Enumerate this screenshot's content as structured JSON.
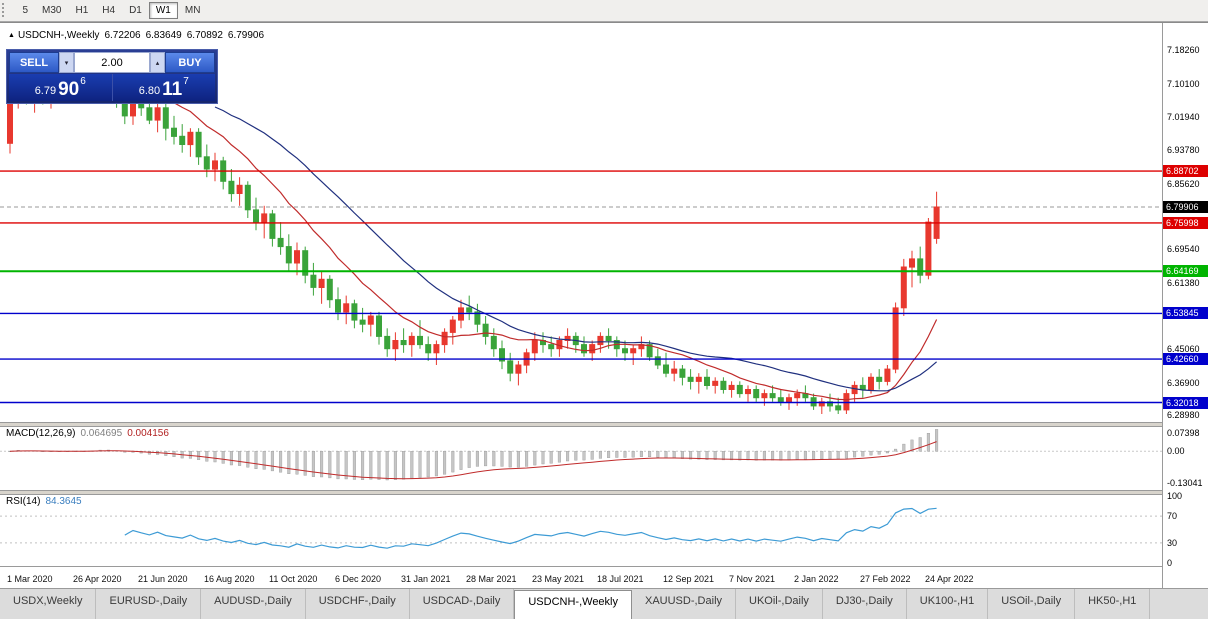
{
  "toolbar": {
    "timeframes": [
      "5",
      "M30",
      "H1",
      "H4",
      "D1",
      "W1",
      "MN"
    ],
    "active": "W1"
  },
  "header": {
    "arrow": "▲",
    "symbol": "USDCNH-,Weekly",
    "open": "6.72206",
    "high": "6.83649",
    "low": "6.70892",
    "close": "6.79906"
  },
  "trade_panel": {
    "sell_label": "SELL",
    "buy_label": "BUY",
    "volume": "2.00",
    "volume_down_icon": "▾",
    "volume_up_icon": "▴",
    "sell_price": {
      "prefix": "6.79",
      "big": "90",
      "sup": "6"
    },
    "buy_price": {
      "prefix": "6.80",
      "big": "11",
      "sup": "7"
    }
  },
  "bottom_tabs": {
    "items": [
      "USDX,Weekly",
      "EURUSD-,Daily",
      "AUDUSD-,Daily",
      "USDCHF-,Daily",
      "USDCAD-,Daily",
      "USDCNH-,Weekly",
      "XAUUSD-,Daily",
      "UKOil-,Daily",
      "DJ30-,Daily",
      "UK100-,H1",
      "USOil-,Daily",
      "HK50-,H1"
    ],
    "active": "USDCNH-,Weekly"
  },
  "chart_data": {
    "type": "candlestick",
    "symbol": "USDCNH-",
    "period": "Weekly",
    "price_range": [
      6.27,
      7.23
    ],
    "colors": {
      "bull": "#e8382e",
      "bear": "#3aa33a",
      "ma_fast": "#c02b2b",
      "ma_slow": "#20307f",
      "macd_hist": "#c6c6c6",
      "macd_signal": "#c02b2b",
      "rsi_line": "#3d9bd5",
      "level_red": "#dd0000",
      "level_green": "#00b400",
      "level_blue": "#0000cc"
    },
    "candles": [
      [
        6.955,
        7.13,
        6.93,
        7.09
      ],
      [
        7.09,
        7.165,
        7.04,
        7.14
      ],
      [
        7.14,
        7.155,
        7.05,
        7.075
      ],
      [
        7.075,
        7.105,
        7.03,
        7.09
      ],
      [
        7.09,
        7.115,
        7.05,
        7.062
      ],
      [
        7.062,
        7.1,
        7.04,
        7.082
      ],
      [
        7.082,
        7.12,
        7.06,
        7.1
      ],
      [
        7.1,
        7.13,
        7.07,
        7.08
      ],
      [
        7.08,
        7.12,
        7.06,
        7.108
      ],
      [
        7.108,
        7.14,
        7.08,
        7.092
      ],
      [
        7.092,
        7.122,
        7.062,
        7.102
      ],
      [
        7.102,
        7.162,
        7.082,
        7.132
      ],
      [
        7.132,
        7.177,
        7.092,
        7.112
      ],
      [
        7.112,
        7.132,
        7.042,
        7.062
      ],
      [
        7.062,
        7.092,
        7.002,
        7.022
      ],
      [
        7.022,
        7.082,
        7.0,
        7.072
      ],
      [
        7.072,
        7.092,
        7.022,
        7.042
      ],
      [
        7.042,
        7.072,
        7.002,
        7.012
      ],
      [
        7.012,
        7.062,
        6.982,
        7.042
      ],
      [
        7.042,
        7.062,
        6.962,
        6.992
      ],
      [
        6.992,
        7.022,
        6.952,
        6.972
      ],
      [
        6.972,
        7.002,
        6.932,
        6.952
      ],
      [
        6.952,
        6.992,
        6.922,
        6.982
      ],
      [
        6.982,
        6.992,
        6.902,
        6.922
      ],
      [
        6.922,
        6.952,
        6.872,
        6.892
      ],
      [
        6.892,
        6.932,
        6.862,
        6.912
      ],
      [
        6.912,
        6.922,
        6.842,
        6.862
      ],
      [
        6.862,
        6.892,
        6.812,
        6.832
      ],
      [
        6.832,
        6.872,
        6.802,
        6.852
      ],
      [
        6.852,
        6.862,
        6.772,
        6.792
      ],
      [
        6.792,
        6.822,
        6.742,
        6.762
      ],
      [
        6.762,
        6.802,
        6.722,
        6.782
      ],
      [
        6.782,
        6.792,
        6.702,
        6.722
      ],
      [
        6.722,
        6.762,
        6.682,
        6.702
      ],
      [
        6.702,
        6.732,
        6.642,
        6.662
      ],
      [
        6.662,
        6.712,
        6.632,
        6.692
      ],
      [
        6.692,
        6.702,
        6.612,
        6.632
      ],
      [
        6.632,
        6.662,
        6.582,
        6.602
      ],
      [
        6.602,
        6.642,
        6.562,
        6.622
      ],
      [
        6.622,
        6.632,
        6.552,
        6.572
      ],
      [
        6.572,
        6.602,
        6.522,
        6.542
      ],
      [
        6.542,
        6.582,
        6.512,
        6.562
      ],
      [
        6.562,
        6.572,
        6.502,
        6.522
      ],
      [
        6.522,
        6.552,
        6.492,
        6.512
      ],
      [
        6.512,
        6.542,
        6.482,
        6.532
      ],
      [
        6.532,
        6.542,
        6.462,
        6.482
      ],
      [
        6.482,
        6.502,
        6.432,
        6.452
      ],
      [
        6.452,
        6.492,
        6.422,
        6.472
      ],
      [
        6.472,
        6.502,
        6.442,
        6.462
      ],
      [
        6.462,
        6.492,
        6.432,
        6.482
      ],
      [
        6.482,
        6.522,
        6.452,
        6.462
      ],
      [
        6.462,
        6.482,
        6.422,
        6.442
      ],
      [
        6.442,
        6.472,
        6.412,
        6.462
      ],
      [
        6.462,
        6.502,
        6.442,
        6.492
      ],
      [
        6.492,
        6.532,
        6.462,
        6.522
      ],
      [
        6.522,
        6.572,
        6.502,
        6.552
      ],
      [
        6.552,
        6.582,
        6.522,
        6.542
      ],
      [
        6.542,
        6.562,
        6.492,
        6.512
      ],
      [
        6.512,
        6.532,
        6.462,
        6.482
      ],
      [
        6.482,
        6.502,
        6.432,
        6.452
      ],
      [
        6.452,
        6.472,
        6.402,
        6.422
      ],
      [
        6.422,
        6.442,
        6.372,
        6.392
      ],
      [
        6.392,
        6.422,
        6.362,
        6.412
      ],
      [
        6.412,
        6.452,
        6.392,
        6.442
      ],
      [
        6.442,
        6.492,
        6.422,
        6.472
      ],
      [
        6.472,
        6.492,
        6.442,
        6.462
      ],
      [
        6.462,
        6.482,
        6.432,
        6.452
      ],
      [
        6.452,
        6.482,
        6.432,
        6.472
      ],
      [
        6.472,
        6.502,
        6.452,
        6.482
      ],
      [
        6.482,
        6.492,
        6.442,
        6.462
      ],
      [
        6.462,
        6.482,
        6.432,
        6.442
      ],
      [
        6.442,
        6.472,
        6.422,
        6.462
      ],
      [
        6.462,
        6.492,
        6.442,
        6.482
      ],
      [
        6.482,
        6.502,
        6.452,
        6.472
      ],
      [
        6.472,
        6.482,
        6.432,
        6.452
      ],
      [
        6.452,
        6.472,
        6.422,
        6.442
      ],
      [
        6.442,
        6.462,
        6.412,
        6.452
      ],
      [
        6.452,
        6.482,
        6.432,
        6.462
      ],
      [
        6.462,
        6.472,
        6.422,
        6.432
      ],
      [
        6.432,
        6.452,
        6.402,
        6.412
      ],
      [
        6.412,
        6.442,
        6.382,
        6.392
      ],
      [
        6.392,
        6.422,
        6.372,
        6.402
      ],
      [
        6.402,
        6.412,
        6.362,
        6.382
      ],
      [
        6.382,
        6.402,
        6.352,
        6.372
      ],
      [
        6.372,
        6.392,
        6.342,
        6.382
      ],
      [
        6.382,
        6.402,
        6.352,
        6.362
      ],
      [
        6.362,
        6.382,
        6.342,
        6.372
      ],
      [
        6.372,
        6.382,
        6.342,
        6.352
      ],
      [
        6.352,
        6.372,
        6.332,
        6.362
      ],
      [
        6.362,
        6.372,
        6.332,
        6.342
      ],
      [
        6.342,
        6.362,
        6.322,
        6.352
      ],
      [
        6.352,
        6.362,
        6.322,
        6.332
      ],
      [
        6.332,
        6.352,
        6.312,
        6.342
      ],
      [
        6.342,
        6.362,
        6.322,
        6.332
      ],
      [
        6.332,
        6.352,
        6.312,
        6.322
      ],
      [
        6.322,
        6.342,
        6.302,
        6.332
      ],
      [
        6.332,
        6.352,
        6.312,
        6.342
      ],
      [
        6.342,
        6.362,
        6.322,
        6.332
      ],
      [
        6.332,
        6.342,
        6.302,
        6.312
      ],
      [
        6.312,
        6.332,
        6.292,
        6.322
      ],
      [
        6.322,
        6.342,
        6.298,
        6.312
      ],
      [
        6.312,
        6.332,
        6.292,
        6.302
      ],
      [
        6.302,
        6.352,
        6.292,
        6.342
      ],
      [
        6.342,
        6.372,
        6.322,
        6.362
      ],
      [
        6.362,
        6.382,
        6.332,
        6.352
      ],
      [
        6.352,
        6.392,
        6.342,
        6.382
      ],
      [
        6.382,
        6.402,
        6.352,
        6.372
      ],
      [
        6.372,
        6.412,
        6.362,
        6.402
      ],
      [
        6.402,
        6.565,
        6.392,
        6.552
      ],
      [
        6.552,
        6.672,
        6.532,
        6.652
      ],
      [
        6.652,
        6.692,
        6.602,
        6.672
      ],
      [
        6.672,
        6.702,
        6.612,
        6.632
      ],
      [
        6.632,
        6.772,
        6.622,
        6.762
      ],
      [
        6.72206,
        6.83649,
        6.70892,
        6.79906
      ]
    ],
    "ma": [
      {
        "period": 12,
        "color": "#c02b2b"
      },
      {
        "period": 26,
        "color": "#20307f"
      }
    ],
    "levels": [
      {
        "price": 6.88702,
        "label": "6.88702",
        "color": "#dd0000",
        "width": 1.4
      },
      {
        "price": 6.75998,
        "label": "6.75998",
        "color": "#dd0000",
        "width": 1.4
      },
      {
        "price": 6.64169,
        "label": "6.64169",
        "color": "#00b400",
        "width": 2
      },
      {
        "price": 6.53845,
        "label": "6.53845",
        "color": "#0000cc",
        "width": 1.4
      },
      {
        "price": 6.4266,
        "label": "6.42660",
        "color": "#0000cc",
        "width": 1.4
      },
      {
        "price": 6.32018,
        "label": "6.32018",
        "color": "#0000cc",
        "width": 1.4
      }
    ],
    "current_price": {
      "price": 6.79906,
      "label": "6.79906",
      "bg": "#000000"
    },
    "price_axis_ticks": [
      {
        "label": "7.18260",
        "price": 7.1826
      },
      {
        "label": "7.10100",
        "price": 7.101
      },
      {
        "label": "7.01940",
        "price": 7.0194
      },
      {
        "label": "6.93780",
        "price": 6.9378
      },
      {
        "label": "6.85620",
        "price": 6.8562
      },
      {
        "label": "6.69540",
        "price": 6.6954
      },
      {
        "label": "6.61380",
        "price": 6.6138
      },
      {
        "label": "6.45060",
        "price": 6.4506
      },
      {
        "label": "6.36900",
        "price": 6.369
      },
      {
        "label": "6.28980",
        "price": 6.2898
      }
    ],
    "x_labels": [
      "1 Mar 2020",
      "26 Apr 2020",
      "21 Jun 2020",
      "16 Aug 2020",
      "11 Oct 2020",
      "6 Dec 2020",
      "31 Jan 2021",
      "28 Mar 2021",
      "23 May 2021",
      "18 Jul 2021",
      "12 Sep 2021",
      "7 Nov 2021",
      "2 Jan 2022",
      "27 Feb 2022",
      "24 Apr 2022"
    ],
    "macd": {
      "title": "MACD(12,26,9)",
      "value": "0.064695",
      "signal": "0.004156",
      "params": [
        12,
        26,
        9
      ],
      "range": [
        -0.155,
        0.095
      ],
      "axis": [
        {
          "label": "0.07398",
          "value": 0.07398
        },
        {
          "label": "0.00",
          "value": 0
        },
        {
          "label": "-0.13041",
          "value": -0.13041
        }
      ]
    },
    "rsi": {
      "title": "RSI(14)",
      "value": "84.3645",
      "period": 14,
      "levels": [
        70,
        30
      ],
      "axis": [
        {
          "label": "100",
          "value": 100
        },
        {
          "label": "70",
          "value": 70
        },
        {
          "label": "30",
          "value": 30
        },
        {
          "label": "0",
          "value": 0
        }
      ]
    }
  }
}
